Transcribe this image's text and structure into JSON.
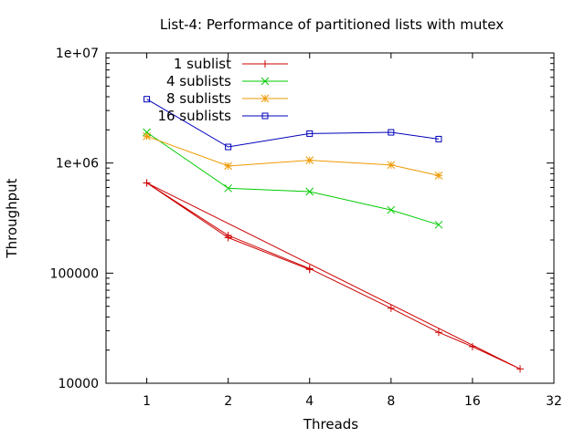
{
  "chart_data": {
    "type": "line",
    "title": "List-4: Performance of partitioned lists with mutex",
    "xlabel": "Threads",
    "ylabel": "Throughput",
    "x_scale": "log2",
    "y_scale": "log10",
    "xlim": [
      0.707,
      32
    ],
    "ylim": [
      10000,
      10000000
    ],
    "x_ticks": [
      1,
      2,
      4,
      8,
      16,
      32
    ],
    "x_tick_labels": [
      "1",
      "2",
      "4",
      "8",
      "16",
      "32"
    ],
    "y_ticks": [
      10000,
      100000,
      1000000,
      10000000
    ],
    "y_tick_labels": [
      "10000",
      "100000",
      "1e+06",
      "1e+07"
    ],
    "grid": false,
    "legend_position": "top-left",
    "series": [
      {
        "name": "1 sublist",
        "color": "#cc0000",
        "marker": "plus",
        "points": [
          [
            1,
            660000
          ],
          [
            2,
            220000
          ],
          [
            4,
            110000
          ],
          [
            8,
            48000
          ],
          [
            12,
            29000
          ],
          [
            16,
            21500
          ],
          [
            24,
            13500
          ],
          [
            1,
            660000
          ],
          [
            2,
            210000
          ],
          [
            4,
            108000
          ]
        ]
      },
      {
        "name": "4 sublists",
        "color": "#00cc00",
        "marker": "x",
        "points": [
          [
            1,
            1900000
          ],
          [
            2,
            590000
          ],
          [
            4,
            550000
          ],
          [
            8,
            375000
          ],
          [
            12,
            275000
          ]
        ]
      },
      {
        "name": "8 sublists",
        "color": "#ee9900",
        "marker": "star",
        "points": [
          [
            1,
            1750000
          ],
          [
            2,
            940000
          ],
          [
            4,
            1060000
          ],
          [
            8,
            960000
          ],
          [
            12,
            770000
          ]
        ]
      },
      {
        "name": "16 sublists",
        "color": "#0000bb",
        "marker": "square",
        "points": [
          [
            1,
            3800000
          ],
          [
            2,
            1400000
          ],
          [
            4,
            1850000
          ],
          [
            8,
            1900000
          ],
          [
            12,
            1650000
          ]
        ]
      }
    ]
  }
}
